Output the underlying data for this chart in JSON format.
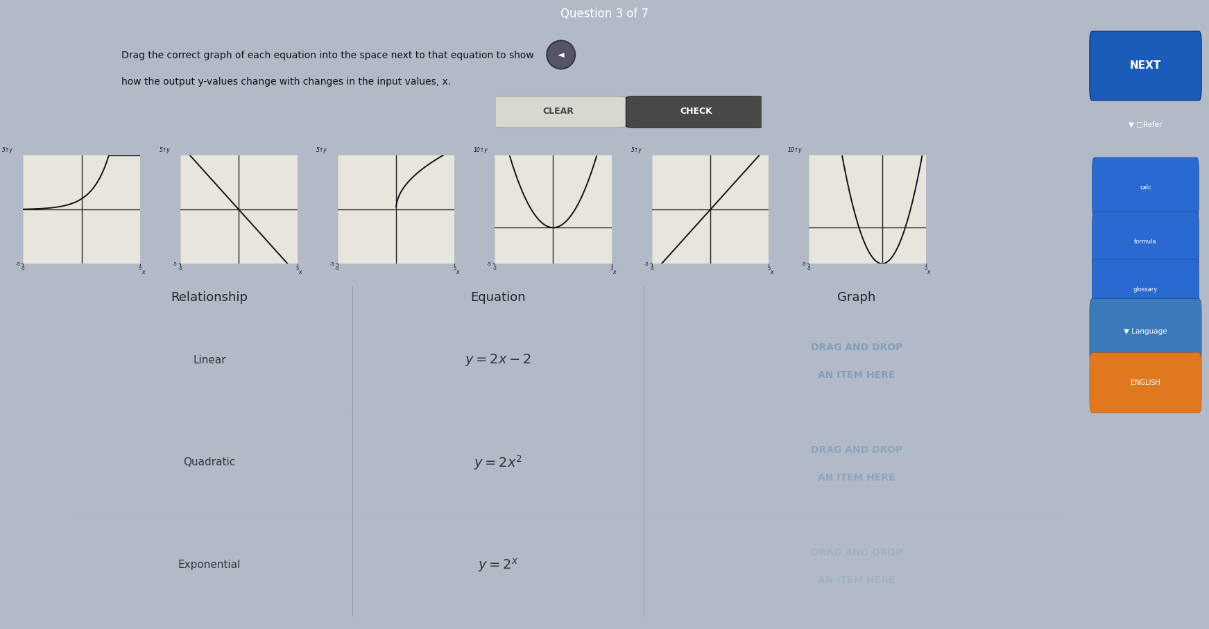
{
  "title": "Question 3 of 7",
  "instruction_line1": "Drag the correct graph of each equation into the space next to that equation to show",
  "instruction_line2": "how the output y-values change with changes in the input values, x.",
  "bg_color": "#b2bac8",
  "card_bg": "#f0ede5",
  "table_header_bg": "#b8bec8",
  "table_row1_bg": "#dddad2",
  "table_row2_bg": "#d5d2ca",
  "table_row3_bg": "#ccc9c2",
  "relationships": [
    "Linear",
    "Quadratic",
    "Exponential"
  ],
  "header_labels": [
    "Relationship",
    "Equation",
    "Graph"
  ],
  "next_btn_color": "#1a5cb8",
  "drag_colors": [
    "#7a9ab8",
    "#7a9ab8",
    "#8aabb8"
  ],
  "drag_alphas": [
    0.85,
    0.65,
    0.45
  ],
  "sidebar_bg": "#3a7ab8",
  "graphs": [
    {
      "type": "exponential_pos",
      "ylim": [
        -5,
        5
      ],
      "xlim": [
        -5,
        5
      ],
      "ymax_label": "5"
    },
    {
      "type": "linear_steep_neg",
      "ylim": [
        -5,
        5
      ],
      "xlim": [
        -5,
        5
      ],
      "ymax_label": "5"
    },
    {
      "type": "sqrt_like",
      "ylim": [
        -5,
        5
      ],
      "xlim": [
        -5,
        5
      ],
      "ymax_label": "5"
    },
    {
      "type": "parabola_V",
      "ylim": [
        -5,
        10
      ],
      "xlim": [
        -3,
        3
      ],
      "ymax_label": "10"
    },
    {
      "type": "linear_cross",
      "ylim": [
        -5,
        5
      ],
      "xlim": [
        -5,
        5
      ],
      "ymax_label": "5"
    },
    {
      "type": "parabola_wide",
      "ylim": [
        -5,
        10
      ],
      "xlim": [
        -5,
        3
      ],
      "ymax_label": "10"
    }
  ]
}
